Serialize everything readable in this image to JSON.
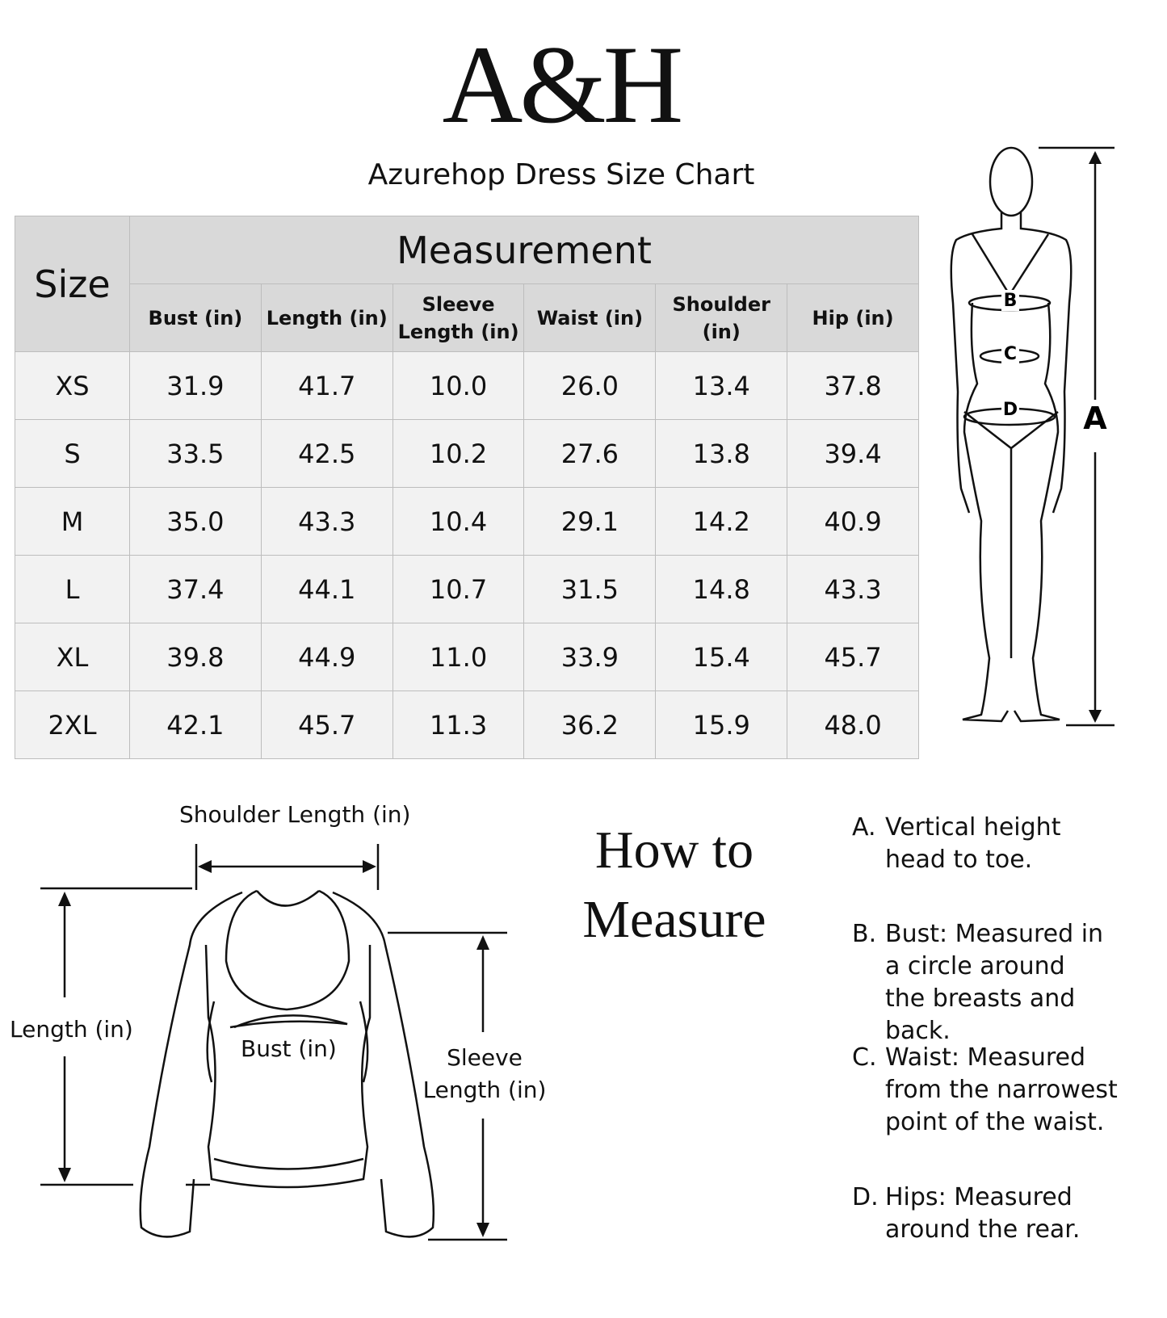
{
  "logo": "A&H",
  "subtitle": "Azurehop Dress Size Chart",
  "table": {
    "size_header": "Size",
    "group_header": "Measurement",
    "columns": [
      "Bust (in)",
      "Length (in)",
      "Sleeve Length (in)",
      "Waist (in)",
      "Shoulder (in)",
      "Hip (in)"
    ],
    "rows": [
      {
        "size": "XS",
        "values": [
          "31.9",
          "41.7",
          "10.0",
          "26.0",
          "13.4",
          "37.8"
        ]
      },
      {
        "size": "S",
        "values": [
          "33.5",
          "42.5",
          "10.2",
          "27.6",
          "13.8",
          "39.4"
        ]
      },
      {
        "size": "M",
        "values": [
          "35.0",
          "43.3",
          "10.4",
          "29.1",
          "14.2",
          "40.9"
        ]
      },
      {
        "size": "L",
        "values": [
          "37.4",
          "44.1",
          "10.7",
          "31.5",
          "14.8",
          "43.3"
        ]
      },
      {
        "size": "XL",
        "values": [
          "39.8",
          "44.9",
          "11.0",
          "33.9",
          "15.4",
          "45.7"
        ]
      },
      {
        "size": "2XL",
        "values": [
          "42.1",
          "45.7",
          "11.3",
          "36.2",
          "15.9",
          "48.0"
        ]
      }
    ]
  },
  "body_figure": {
    "labels": {
      "a": "A",
      "b": "B",
      "c": "C",
      "d": "D"
    }
  },
  "sweater": {
    "shoulder": "Shoulder Length (in)",
    "length": "Length (in)",
    "bust": "Bust (in)",
    "sleeve_1": "Sleeve",
    "sleeve_2": "Length (in)"
  },
  "how_to": {
    "line1": "How to",
    "line2": "Measure"
  },
  "notes": [
    {
      "key": "A.",
      "text": "Vertical height head to toe."
    },
    {
      "key": "B.",
      "text": "Bust: Measured in a circle around the breasts and back."
    },
    {
      "key": "C.",
      "text": "Waist: Measured from the narrowest point of the waist."
    },
    {
      "key": "D.",
      "text": "Hips: Measured around the rear."
    }
  ]
}
